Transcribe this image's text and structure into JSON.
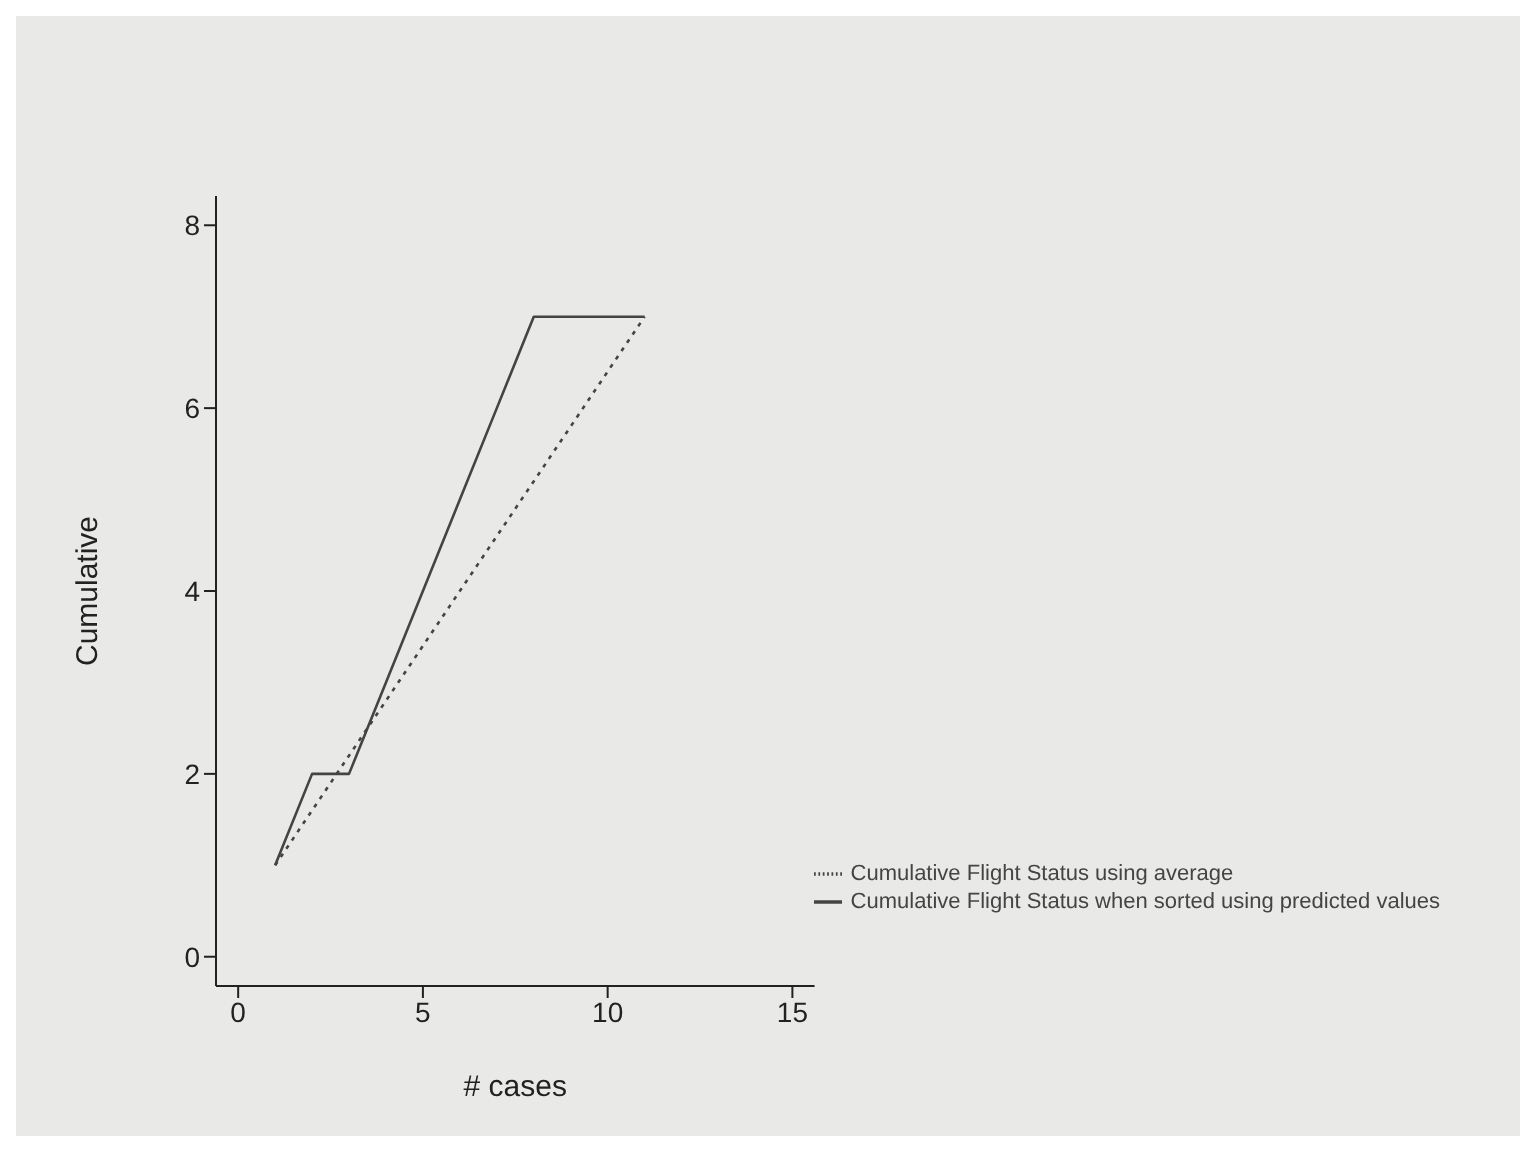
{
  "chart_data": {
    "type": "line",
    "xlabel": "# cases",
    "ylabel": "Cumulative",
    "series": [
      {
        "name": "Cumulative Flight Status when sorted using predicted values",
        "color": "#444444",
        "line_style": "solid",
        "x": [
          1,
          2,
          3,
          4,
          5,
          6,
          7,
          8,
          9,
          10,
          11
        ],
        "values": [
          1,
          2,
          2,
          3,
          4,
          5,
          6,
          7,
          7,
          7,
          7
        ]
      },
      {
        "name": "Cumulative Flight Status using average",
        "color": "#444444",
        "line_style": "dotted",
        "x": [
          1,
          11
        ],
        "values": [
          1,
          7
        ]
      }
    ],
    "xlim": [
      -0.6,
      15.6
    ],
    "xticks": [
      0,
      5,
      10,
      15
    ],
    "ylim": [
      -0.32,
      8.32
    ],
    "yticks": [
      0,
      2,
      4,
      6,
      8
    ],
    "grid": false,
    "legend": "bottom right",
    "marker": "none"
  }
}
